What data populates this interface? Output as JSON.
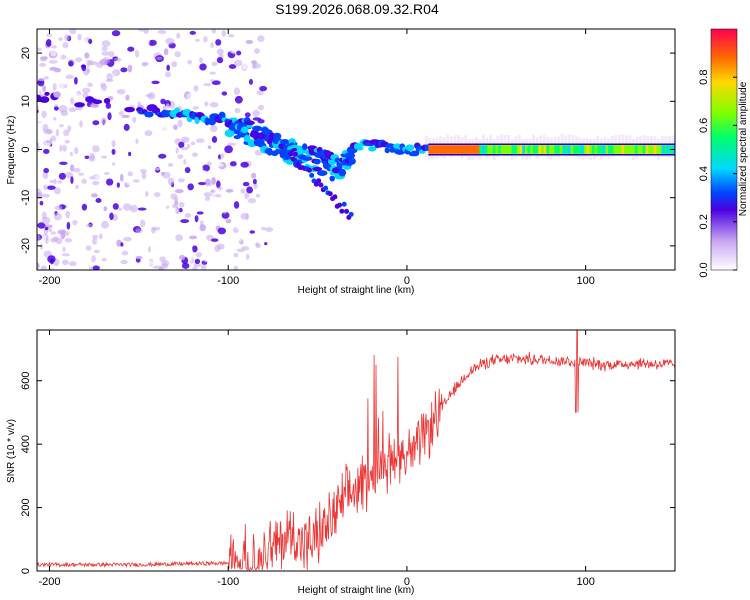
{
  "figure": {
    "title": "S199.2026.068.09.32.R04"
  },
  "chart_data": [
    {
      "type": "heatmap",
      "name": "spectrogram",
      "xlabel": "Height of straight line (km)",
      "ylabel": "Frequency (Hz)",
      "xlim": [
        -207,
        150
      ],
      "ylim": [
        -25,
        25
      ],
      "x_ticks": [
        -200,
        -100,
        0,
        100
      ],
      "y_ticks": [
        -20,
        -10,
        0,
        10,
        20
      ],
      "colorbar": {
        "label": "Normalized spectral amplitude",
        "range": [
          0,
          1
        ],
        "ticks": [
          0.0,
          0.2,
          0.4,
          0.6,
          0.8
        ]
      },
      "ridge": {
        "description_points_x": [
          -207,
          -180,
          -150,
          -120,
          -100,
          -90,
          -80,
          -70,
          -60,
          -50,
          -40,
          -30,
          -20,
          -10,
          0,
          20,
          50,
          90,
          150
        ],
        "description_points_y": [
          11,
          10,
          8,
          7,
          6,
          4,
          2,
          0,
          -1,
          -2,
          -4,
          0,
          1,
          0.5,
          0,
          0,
          0,
          0,
          0
        ]
      }
    },
    {
      "type": "line",
      "name": "snr",
      "xlabel": "Height of straight line (km)",
      "ylabel": "SNR (10 * v/v)",
      "xlim": [
        -207,
        150
      ],
      "ylim": [
        0,
        760
      ],
      "x_ticks": [
        -200,
        -100,
        0,
        100
      ],
      "y_ticks": [
        0,
        200,
        400,
        600
      ],
      "color": "#ee3333",
      "trend_x": [
        -207,
        -150,
        -100,
        -85,
        -75,
        -65,
        -55,
        -45,
        -35,
        -25,
        -15,
        -5,
        5,
        15,
        25,
        35,
        45,
        60,
        80,
        95,
        110,
        130,
        150
      ],
      "trend_y": [
        20,
        20,
        25,
        35,
        70,
        120,
        80,
        140,
        220,
        280,
        330,
        360,
        380,
        470,
        560,
        630,
        660,
        670,
        665,
        660,
        650,
        655,
        650
      ]
    }
  ]
}
